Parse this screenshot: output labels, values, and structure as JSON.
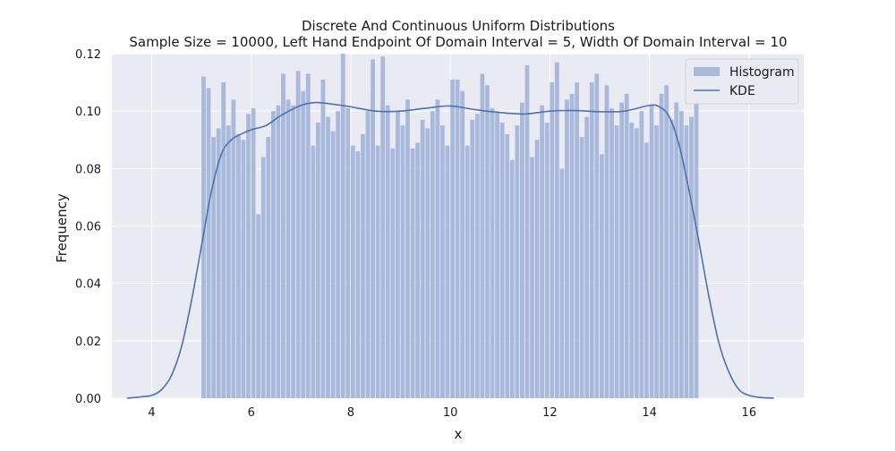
{
  "chart_data": {
    "type": "bar",
    "title": "Discrete And Continuous Uniform Distributions",
    "subtitle": "Sample Size = 10000, Left Hand Endpoint Of Domain Interval = 5, Width Of Domain Interval = 10",
    "xlabel": "x",
    "ylabel": "Frequency",
    "xlim": [
      3.2,
      17.1
    ],
    "ylim": [
      0,
      0.12
    ],
    "xticks": [
      "4",
      "6",
      "8",
      "10",
      "12",
      "14",
      "16"
    ],
    "yticks": [
      "0.00",
      "0.02",
      "0.04",
      "0.06",
      "0.08",
      "0.10",
      "0.12"
    ],
    "grid": true,
    "legend_position": "top-right",
    "colors": {
      "background": "#eaeaf2",
      "histogram": "#a8b9dc",
      "kde": "#4c72b0",
      "grid": "#ffffff"
    },
    "histogram": {
      "name": "Histogram",
      "bin_start": 5,
      "bin_width": 0.1,
      "values": [
        0.112,
        0.108,
        0.091,
        0.094,
        0.11,
        0.095,
        0.104,
        0.092,
        0.09,
        0.099,
        0.101,
        0.064,
        0.084,
        0.091,
        0.1,
        0.102,
        0.113,
        0.104,
        0.102,
        0.114,
        0.107,
        0.113,
        0.088,
        0.096,
        0.111,
        0.098,
        0.093,
        0.1,
        0.12,
        0.101,
        0.088,
        0.086,
        0.092,
        0.1,
        0.118,
        0.088,
        0.119,
        0.102,
        0.087,
        0.1,
        0.095,
        0.104,
        0.087,
        0.089,
        0.097,
        0.094,
        0.1,
        0.104,
        0.095,
        0.088,
        0.111,
        0.111,
        0.107,
        0.088,
        0.097,
        0.099,
        0.113,
        0.109,
        0.101,
        0.1,
        0.096,
        0.092,
        0.083,
        0.095,
        0.103,
        0.116,
        0.084,
        0.09,
        0.102,
        0.096,
        0.11,
        0.117,
        0.08,
        0.104,
        0.106,
        0.11,
        0.091,
        0.098,
        0.11,
        0.113,
        0.085,
        0.109,
        0.101,
        0.095,
        0.103,
        0.106,
        0.096,
        0.094,
        0.1,
        0.089,
        0.102,
        0.095,
        0.106,
        0.109,
        0.097,
        0.103,
        0.1,
        0.095,
        0.098,
        0.106
      ]
    },
    "kde": {
      "name": "KDE",
      "x": [
        3.5,
        3.8,
        4.0,
        4.2,
        4.4,
        4.6,
        4.8,
        5.0,
        5.2,
        5.4,
        5.6,
        5.8,
        6.0,
        6.3,
        6.6,
        7.0,
        7.3,
        7.6,
        8.0,
        8.5,
        9.0,
        9.5,
        10.0,
        10.5,
        11.0,
        11.5,
        12.0,
        12.5,
        13.0,
        13.5,
        14.0,
        14.2,
        14.4,
        14.6,
        14.8,
        15.0,
        15.2,
        15.4,
        15.6,
        15.8,
        16.0,
        16.2,
        16.5
      ],
      "y": [
        0.0,
        0.0005,
        0.001,
        0.003,
        0.008,
        0.018,
        0.034,
        0.053,
        0.072,
        0.085,
        0.09,
        0.092,
        0.0935,
        0.095,
        0.0985,
        0.102,
        0.103,
        0.1025,
        0.1015,
        0.1,
        0.1,
        0.101,
        0.1018,
        0.1005,
        0.0995,
        0.099,
        0.1,
        0.1002,
        0.0998,
        0.1,
        0.102,
        0.1015,
        0.098,
        0.088,
        0.072,
        0.054,
        0.035,
        0.019,
        0.009,
        0.003,
        0.001,
        0.0003,
        0.0
      ]
    }
  }
}
